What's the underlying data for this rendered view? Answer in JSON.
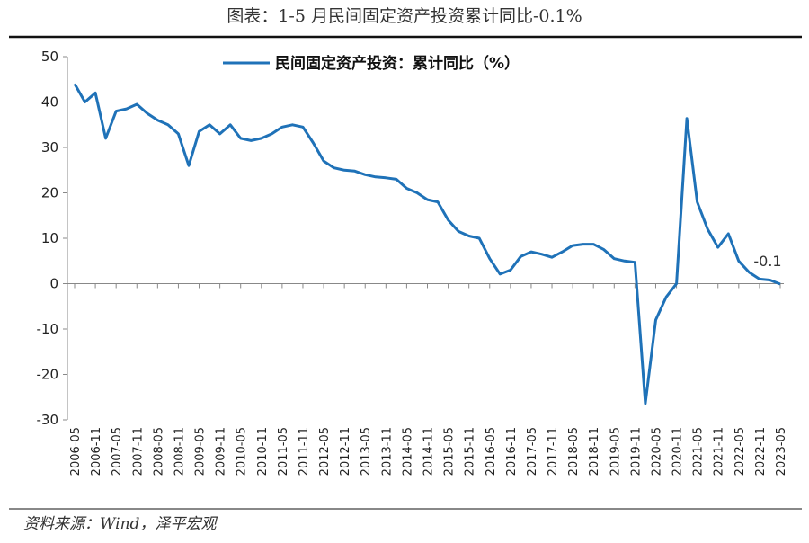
{
  "chart_data": {
    "type": "line",
    "title": "图表：1-5 月民间固定资产投资累计同比-0.1%",
    "source": "资料来源：Wind，泽平宏观",
    "categories": [
      "2006-05",
      null,
      "2006-11",
      null,
      "2007-05",
      null,
      "2007-11",
      null,
      "2008-05",
      null,
      "2008-11",
      null,
      "2009-05",
      null,
      "2009-11",
      null,
      "2010-05",
      null,
      "2010-11",
      null,
      "2011-05",
      null,
      "2011-11",
      null,
      "2012-05",
      null,
      "2012-11",
      null,
      "2013-05",
      null,
      "2013-11",
      null,
      "2014-05",
      null,
      "2014-11",
      null,
      "2015-05",
      null,
      "2015-11",
      null,
      "2016-05",
      null,
      "2016-11",
      null,
      "2017-05",
      null,
      "2017-11",
      null,
      "2018-05",
      null,
      "2018-11",
      null,
      "2019-05",
      null,
      "2019-11",
      null,
      "2020-05",
      null,
      "2020-11",
      null,
      "2021-05",
      null,
      "2021-11",
      null,
      "2022-05",
      null,
      "2022-11",
      null,
      "2023-05"
    ],
    "series": [
      {
        "name": "民间固定资产投资：累计同比（%）",
        "color": "#1f72b8",
        "values": [
          44,
          40,
          42,
          32,
          38,
          38.5,
          39.5,
          37.5,
          36,
          35,
          33,
          26,
          33.5,
          35,
          33,
          35,
          32,
          31.5,
          32,
          33,
          34.5,
          35,
          34.5,
          31,
          27,
          25.5,
          25,
          24.8,
          24,
          23.5,
          23.3,
          23,
          21,
          20,
          18.5,
          18,
          14,
          11.5,
          10.5,
          10,
          5.5,
          2.1,
          3,
          6,
          7,
          6.5,
          5.8,
          7,
          8.4,
          8.7,
          8.7,
          7.5,
          5.5,
          5,
          4.7,
          -26.4,
          -8,
          -3,
          0,
          36.4,
          18,
          12,
          8,
          11,
          5,
          2.5,
          1,
          0.8,
          -0.1
        ]
      }
    ],
    "annotations": [
      {
        "text": "-0.1"
      }
    ],
    "ylim": [
      -30,
      50
    ],
    "yticks": [
      -30,
      -20,
      -10,
      0,
      10,
      20,
      30,
      40,
      50
    ],
    "legend": "top-right"
  }
}
